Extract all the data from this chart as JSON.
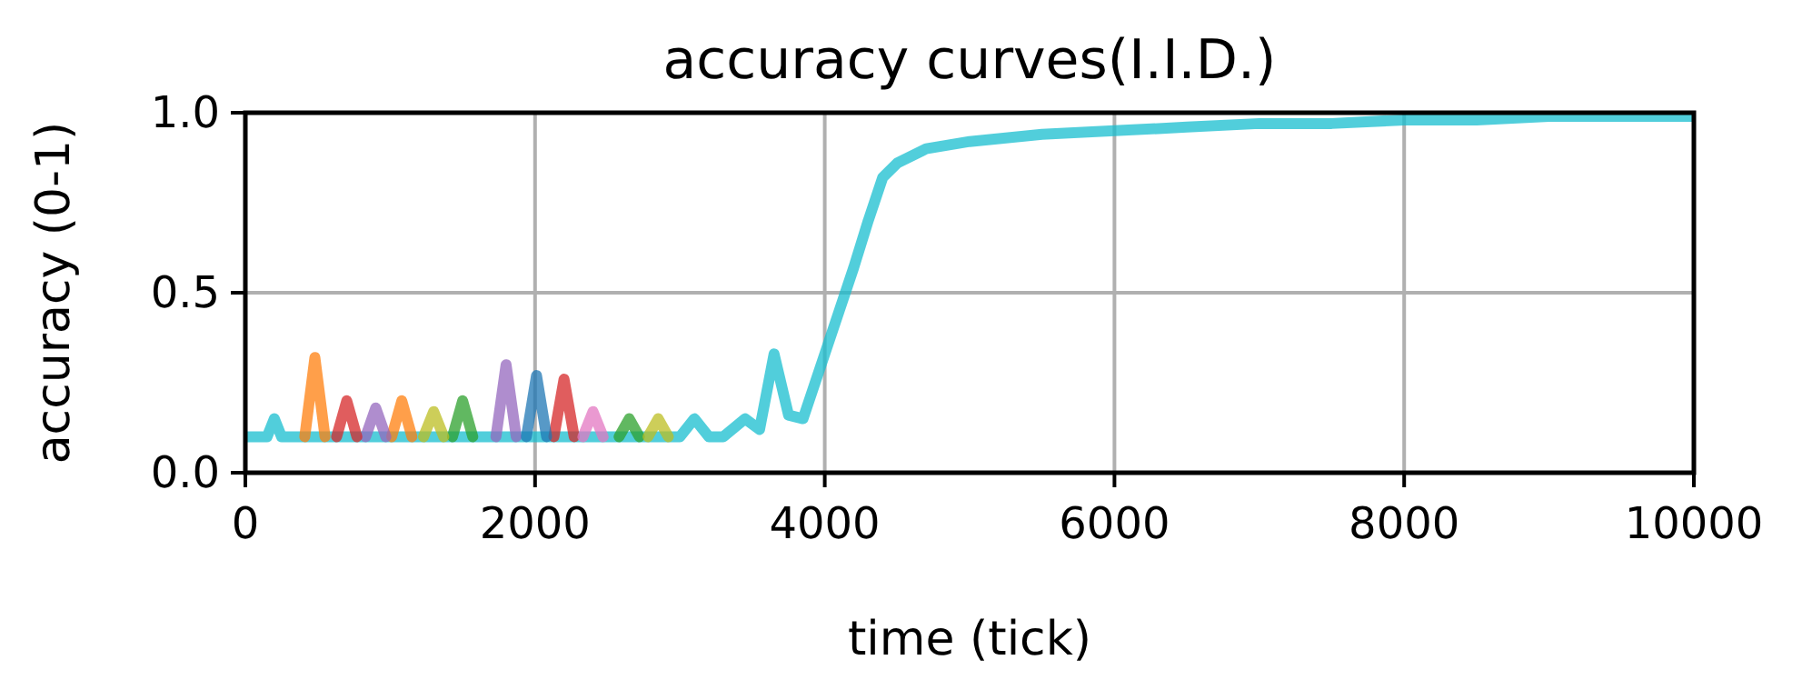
{
  "chart_data": {
    "type": "line",
    "title": "accuracy curves(I.I.D.)",
    "xlabel": "time (tick)",
    "ylabel": "accuracy (0-1)",
    "xlim": [
      0,
      10000
    ],
    "xticks": [
      0,
      2000,
      4000,
      6000,
      8000,
      10000
    ],
    "ylim": [
      0,
      1
    ],
    "yticks": [
      {
        "value": 0,
        "label": "0.0"
      },
      {
        "value": 0.5,
        "label": "0.5"
      },
      {
        "value": 1,
        "label": "1.0"
      }
    ],
    "grid": true,
    "line_style": "solid",
    "marker": "none",
    "series": [
      {
        "color": "#17becf",
        "x": [
          0,
          150,
          200,
          250,
          3000,
          3100,
          3200,
          3300,
          3450,
          3550,
          3650,
          3750,
          3850,
          4000,
          4100,
          4200,
          4300,
          4400,
          4500,
          4700,
          5000,
          5500,
          6000,
          6500,
          7000,
          7500,
          8000,
          8500,
          9000,
          9500,
          10000
        ],
        "values": [
          0.1,
          0.1,
          0.15,
          0.1,
          0.1,
          0.15,
          0.1,
          0.1,
          0.15,
          0.12,
          0.33,
          0.16,
          0.15,
          0.33,
          0.45,
          0.57,
          0.7,
          0.82,
          0.86,
          0.9,
          0.92,
          0.94,
          0.95,
          0.96,
          0.97,
          0.97,
          0.98,
          0.98,
          0.99,
          0.99,
          0.99
        ]
      },
      {
        "color": "#ff7f0e",
        "x": [
          410,
          480,
          550,
          800,
          1010,
          1080,
          1150
        ],
        "values": [
          0.1,
          0.32,
          0.1,
          null,
          0.1,
          0.2,
          0.1
        ]
      },
      {
        "color": "#9467bd",
        "x": [
          830,
          900,
          970,
          1400,
          1730,
          1800,
          1870
        ],
        "values": [
          0.1,
          0.18,
          0.1,
          null,
          0.1,
          0.3,
          0.1
        ]
      },
      {
        "color": "#2ca02c",
        "x": [
          1430,
          1500,
          1570,
          2100,
          2580,
          2650,
          2720
        ],
        "values": [
          0.1,
          0.2,
          0.1,
          null,
          0.1,
          0.15,
          0.1
        ]
      },
      {
        "color": "#d62728",
        "x": [
          630,
          700,
          770,
          1500,
          2130,
          2200,
          2270
        ],
        "values": [
          0.1,
          0.2,
          0.1,
          null,
          0.1,
          0.26,
          0.1
        ]
      },
      {
        "color": "#1f77b4",
        "x": [
          1940,
          2010,
          2080
        ],
        "values": [
          0.1,
          0.27,
          0.1
        ]
      },
      {
        "color": "#bcbd22",
        "x": [
          1230,
          1300,
          1370,
          2000,
          2780,
          2850,
          2920
        ],
        "values": [
          0.1,
          0.17,
          0.1,
          null,
          0.1,
          0.15,
          0.1
        ]
      },
      {
        "color": "#e377c2",
        "x": [
          2330,
          2400,
          2470
        ],
        "values": [
          0.1,
          0.17,
          0.1
        ]
      }
    ]
  }
}
